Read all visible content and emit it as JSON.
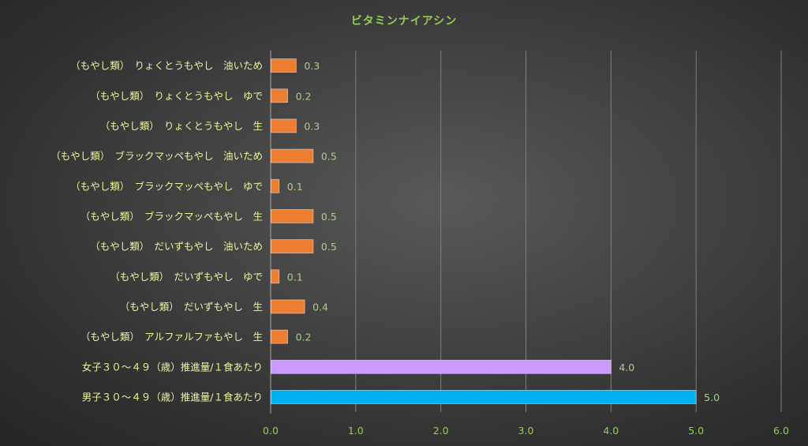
{
  "chart_data": {
    "type": "bar",
    "orientation": "horizontal",
    "title": "ビタミンナイアシン",
    "categories": [
      "（もやし類）　りょくとうもやし　油いため",
      "（もやし類）　りょくとうもやし　ゆで",
      "（もやし類）　りょくとうもやし　生",
      "（もやし類）　ブラックマッペもやし　油いため",
      "（もやし類）　ブラックマッペもやし　ゆで",
      "（もやし類）　ブラックマッペもやし　生",
      "（もやし類）　だいずもやし　油いため",
      "（もやし類）　だいずもやし　ゆで",
      "（もやし類）　だいずもやし　生",
      "（もやし類）　アルファルファもやし　生",
      "女子３０～４９（歳）推進量/１食あたり",
      "男子３０～４９（歳）推進量/１食あたり"
    ],
    "values": [
      0.3,
      0.2,
      0.3,
      0.5,
      0.1,
      0.5,
      0.5,
      0.1,
      0.4,
      0.2,
      4.0,
      5.0
    ],
    "value_labels": [
      "0.3",
      "0.2",
      "0.3",
      "0.5",
      "0.1",
      "0.5",
      "0.5",
      "0.1",
      "0.4",
      "0.2",
      "4.0",
      "5.0"
    ],
    "bar_colors": [
      "#ed7d31",
      "#ed7d31",
      "#ed7d31",
      "#ed7d31",
      "#ed7d31",
      "#ed7d31",
      "#ed7d31",
      "#ed7d31",
      "#ed7d31",
      "#ed7d31",
      "#cc99ff",
      "#00b0f0"
    ],
    "xlim": [
      0,
      6
    ],
    "xticks": [
      "0.0",
      "1.0",
      "2.0",
      "3.0",
      "4.0",
      "5.0",
      "6.0"
    ],
    "grid": "vertical",
    "legend": "none",
    "xlabel": "",
    "ylabel": ""
  },
  "colors": {
    "title": "#92d050",
    "category_text": "#f2f2a0",
    "value_text": "#a9d08e",
    "tick_text": "#92d050",
    "gridline": "#7f7f7f"
  }
}
